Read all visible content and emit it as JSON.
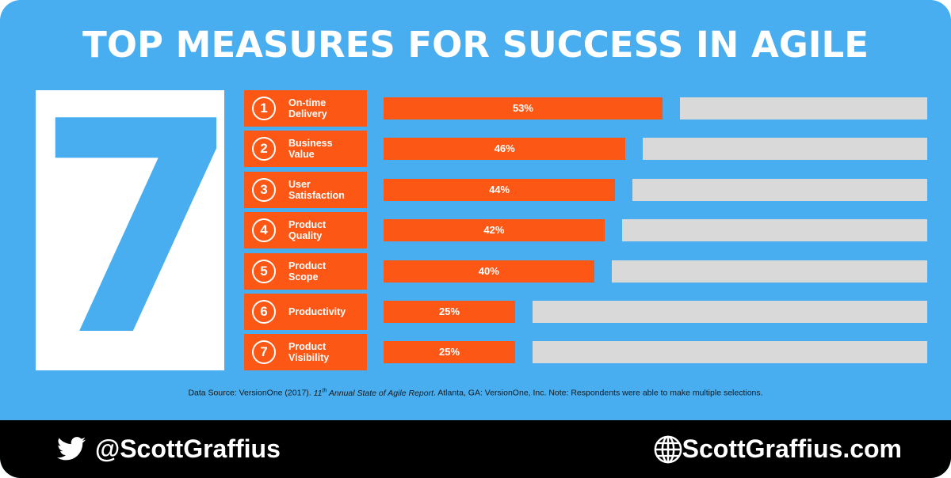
{
  "title": "TOP MEASURES FOR SUCCESS IN AGILE",
  "big_number": "7",
  "chart_data": {
    "type": "bar",
    "orientation": "horizontal",
    "title": "TOP MEASURES FOR SUCCESS IN AGILE",
    "categories": [
      "On-time Delivery",
      "Business Value",
      "User Satisfaction",
      "Product Quality",
      "Product Scope",
      "Productivity",
      "Product Visibility"
    ],
    "values": [
      53,
      46,
      44,
      42,
      40,
      25,
      25
    ],
    "value_labels": [
      "53%",
      "46%",
      "44%",
      "42%",
      "40%",
      "25%",
      "25%"
    ],
    "ranks": [
      "1",
      "2",
      "3",
      "4",
      "5",
      "6",
      "7"
    ],
    "label_lines": [
      [
        "On-time",
        "Delivery"
      ],
      [
        "Business",
        "Value"
      ],
      [
        "User",
        "Satisfaction"
      ],
      [
        "Product",
        "Quality"
      ],
      [
        "Product",
        "Scope"
      ],
      [
        "Productivity"
      ],
      [
        "Product",
        "Visibility"
      ]
    ],
    "xlim": [
      0,
      100
    ],
    "bar_color": "#fd5715",
    "remainder_color": "#d9d9d9",
    "grid": false
  },
  "source": {
    "prefix": "Data Source: VersionOne (2017). ",
    "title_pre": "11",
    "title_sup": "th",
    "title_post": " Annual State of Agile Report",
    "suffix": ". Atlanta, GA: VersionOne, Inc. Note: Respondents were able to make multiple selections."
  },
  "footer": {
    "handle": "@ScottGraffius",
    "website": "ScottGraffius.com",
    "twitter_icon": "twitter-bird-icon",
    "globe_icon": "globe-icon"
  },
  "colors": {
    "background": "#48aef0",
    "accent": "#fd5715",
    "footer": "#000000"
  }
}
